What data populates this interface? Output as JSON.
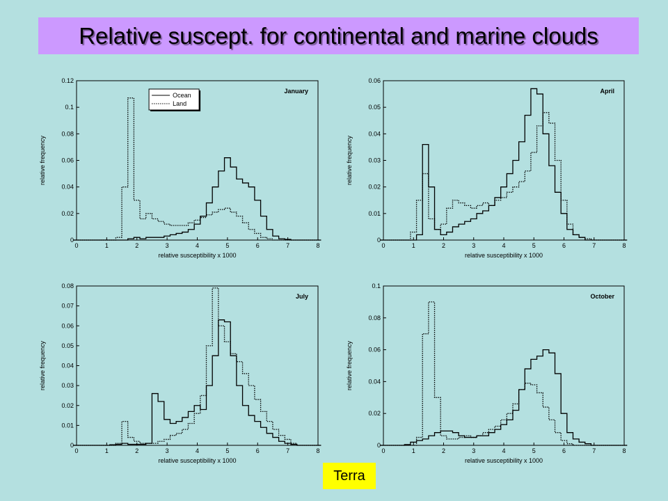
{
  "slide": {
    "title": "Relative suscept. for continental and marine clouds",
    "label": "Terra"
  },
  "chart_data": [
    {
      "type": "line",
      "title": "January",
      "xlabel": "relative susceptibility x 1000",
      "ylabel": "relative frequency",
      "line_shape": "steps",
      "legend": "upper center",
      "x": [
        0,
        0.2,
        0.4,
        0.6,
        0.8,
        1,
        1.2,
        1.4,
        1.6,
        1.8,
        2,
        2.2,
        2.4,
        2.6,
        2.8,
        3,
        3.2,
        3.4,
        3.6,
        3.8,
        4,
        4.2,
        4.4,
        4.6,
        4.8,
        5,
        5.2,
        5.4,
        5.6,
        5.8,
        6,
        6.2,
        6.4,
        6.6,
        6.8,
        7,
        7.2,
        7.4,
        7.6,
        7.8,
        8
      ],
      "xlim": [
        0,
        8
      ],
      "xticks": [
        0,
        1,
        2,
        3,
        4,
        5,
        6,
        7,
        8
      ],
      "ylim": [
        0,
        0.12
      ],
      "yticks": [
        0,
        0.02,
        0.04,
        0.06,
        0.08,
        0.1,
        0.12
      ],
      "series": [
        {
          "name": "Ocean",
          "color": "#000000",
          "dash": "solid",
          "values": [
            0,
            0,
            0,
            0,
            0,
            0,
            0,
            0,
            0,
            0.001,
            0.002,
            0.001,
            0.002,
            0.002,
            0.002,
            0.003,
            0.004,
            0.005,
            0.006,
            0.008,
            0.012,
            0.018,
            0.028,
            0.04,
            0.052,
            0.062,
            0.055,
            0.046,
            0.043,
            0.04,
            0.03,
            0.018,
            0.008,
            0.003,
            0.001,
            0.0005,
            0,
            0,
            0,
            0,
            0
          ]
        },
        {
          "name": "Land",
          "color": "#000000",
          "dash": "dotted",
          "values": [
            0,
            0,
            0,
            0,
            0,
            0,
            0,
            0.002,
            0.04,
            0.107,
            0.03,
            0.016,
            0.02,
            0.016,
            0.014,
            0.012,
            0.011,
            0.011,
            0.011,
            0.013,
            0.015,
            0.017,
            0.019,
            0.021,
            0.023,
            0.024,
            0.021,
            0.018,
            0.013,
            0.008,
            0.005,
            0.002,
            0.001,
            0,
            0,
            0,
            0,
            0,
            0,
            0,
            0
          ]
        }
      ]
    },
    {
      "type": "line",
      "title": "April",
      "xlabel": "relative susceptibility x 1000",
      "ylabel": "relative frequency",
      "line_shape": "steps",
      "x": [
        0,
        0.2,
        0.4,
        0.6,
        0.8,
        1,
        1.2,
        1.4,
        1.6,
        1.8,
        2,
        2.2,
        2.4,
        2.6,
        2.8,
        3,
        3.2,
        3.4,
        3.6,
        3.8,
        4,
        4.2,
        4.4,
        4.6,
        4.8,
        5,
        5.2,
        5.4,
        5.6,
        5.8,
        6,
        6.2,
        6.4,
        6.6,
        6.8,
        7,
        7.2,
        7.4,
        7.6,
        7.8,
        8
      ],
      "xlim": [
        0,
        8
      ],
      "xticks": [
        0,
        1,
        2,
        3,
        4,
        5,
        6,
        7,
        8
      ],
      "ylim": [
        0,
        0.06
      ],
      "yticks": [
        0,
        0.01,
        0.02,
        0.03,
        0.04,
        0.05,
        0.06
      ],
      "series": [
        {
          "color": "#000000",
          "dash": "solid",
          "values": [
            0,
            0,
            0,
            0,
            0,
            0,
            0.002,
            0.036,
            0.02,
            0.004,
            0.002,
            0.003,
            0.005,
            0.006,
            0.007,
            0.008,
            0.01,
            0.011,
            0.013,
            0.016,
            0.02,
            0.025,
            0.03,
            0.037,
            0.047,
            0.057,
            0.055,
            0.04,
            0.028,
            0.018,
            0.01,
            0.004,
            0.002,
            0.001,
            0,
            0,
            0,
            0,
            0,
            0,
            0
          ]
        },
        {
          "color": "#000000",
          "dash": "dotted",
          "values": [
            0,
            0,
            0,
            0,
            0,
            0.003,
            0.015,
            0.025,
            0.008,
            0.004,
            0.006,
            0.012,
            0.015,
            0.014,
            0.013,
            0.012,
            0.013,
            0.014,
            0.013,
            0.015,
            0.016,
            0.018,
            0.02,
            0.022,
            0.026,
            0.033,
            0.043,
            0.048,
            0.044,
            0.03,
            0.015,
            0.006,
            0.002,
            0.001,
            0.0005,
            0,
            0,
            0,
            0,
            0,
            0
          ]
        }
      ]
    },
    {
      "type": "line",
      "title": "July",
      "xlabel": "relative susceptibility x 1000",
      "ylabel": "relative frequency",
      "line_shape": "steps",
      "x": [
        0,
        0.2,
        0.4,
        0.6,
        0.8,
        1,
        1.2,
        1.4,
        1.6,
        1.8,
        2,
        2.2,
        2.4,
        2.6,
        2.8,
        3,
        3.2,
        3.4,
        3.6,
        3.8,
        4,
        4.2,
        4.4,
        4.6,
        4.8,
        5,
        5.2,
        5.4,
        5.6,
        5.8,
        6,
        6.2,
        6.4,
        6.6,
        6.8,
        7,
        7.2,
        7.4,
        7.6,
        7.8,
        8
      ],
      "xlim": [
        0,
        8
      ],
      "xticks": [
        0,
        1,
        2,
        3,
        4,
        5,
        6,
        7,
        8
      ],
      "ylim": [
        0,
        0.08
      ],
      "yticks": [
        0,
        0.01,
        0.02,
        0.03,
        0.04,
        0.05,
        0.06,
        0.07,
        0.08
      ],
      "series": [
        {
          "color": "#000000",
          "dash": "solid",
          "values": [
            0,
            0,
            0,
            0,
            0,
            0,
            0.0003,
            0.0005,
            0.001,
            0.0005,
            0.0005,
            0.0005,
            0.001,
            0.026,
            0.022,
            0.013,
            0.011,
            0.012,
            0.014,
            0.017,
            0.02,
            0.018,
            0.03,
            0.045,
            0.063,
            0.062,
            0.045,
            0.03,
            0.02,
            0.015,
            0.012,
            0.009,
            0.006,
            0.004,
            0.002,
            0.001,
            0.0005,
            0,
            0,
            0,
            0
          ]
        },
        {
          "color": "#000000",
          "dash": "dotted",
          "values": [
            0,
            0,
            0,
            0,
            0,
            0,
            0,
            0.001,
            0.012,
            0.004,
            0.002,
            0.001,
            0.001,
            0.001,
            0.002,
            0.003,
            0.005,
            0.006,
            0.008,
            0.011,
            0.016,
            0.025,
            0.05,
            0.079,
            0.06,
            0.052,
            0.046,
            0.042,
            0.036,
            0.03,
            0.023,
            0.017,
            0.012,
            0.008,
            0.005,
            0.003,
            0.001,
            0,
            0,
            0,
            0
          ]
        }
      ]
    },
    {
      "type": "line",
      "title": "October",
      "xlabel": "relative susceptibility x 1000",
      "ylabel": "relative frequency",
      "line_shape": "steps",
      "x": [
        0,
        0.2,
        0.4,
        0.6,
        0.8,
        1,
        1.2,
        1.4,
        1.6,
        1.8,
        2,
        2.2,
        2.4,
        2.6,
        2.8,
        3,
        3.2,
        3.4,
        3.6,
        3.8,
        4,
        4.2,
        4.4,
        4.6,
        4.8,
        5,
        5.2,
        5.4,
        5.6,
        5.8,
        6,
        6.2,
        6.4,
        6.6,
        6.8,
        7,
        7.2,
        7.4,
        7.6,
        7.8,
        8
      ],
      "xlim": [
        0,
        8
      ],
      "xticks": [
        0,
        1,
        2,
        3,
        4,
        5,
        6,
        7,
        8
      ],
      "ylim": [
        0,
        0.1
      ],
      "yticks": [
        0,
        0.02,
        0.04,
        0.06,
        0.08,
        0.1
      ],
      "series": [
        {
          "color": "#000000",
          "dash": "solid",
          "values": [
            0,
            0,
            0,
            0,
            0.0005,
            0.002,
            0.003,
            0.004,
            0.006,
            0.008,
            0.009,
            0.009,
            0.008,
            0.006,
            0.005,
            0.005,
            0.006,
            0.006,
            0.008,
            0.01,
            0.013,
            0.016,
            0.022,
            0.035,
            0.048,
            0.054,
            0.056,
            0.06,
            0.058,
            0.045,
            0.02,
            0.008,
            0.004,
            0.002,
            0.001,
            0,
            0,
            0,
            0,
            0,
            0
          ]
        },
        {
          "color": "#000000",
          "dash": "dotted",
          "values": [
            0,
            0,
            0,
            0,
            0,
            0,
            0.005,
            0.07,
            0.09,
            0.03,
            0.006,
            0.004,
            0.004,
            0.005,
            0.006,
            0.005,
            0.006,
            0.008,
            0.01,
            0.012,
            0.016,
            0.02,
            0.026,
            0.035,
            0.039,
            0.038,
            0.033,
            0.024,
            0.016,
            0.008,
            0.003,
            0.001,
            0,
            0,
            0,
            0,
            0,
            0,
            0,
            0,
            0
          ]
        }
      ]
    }
  ]
}
